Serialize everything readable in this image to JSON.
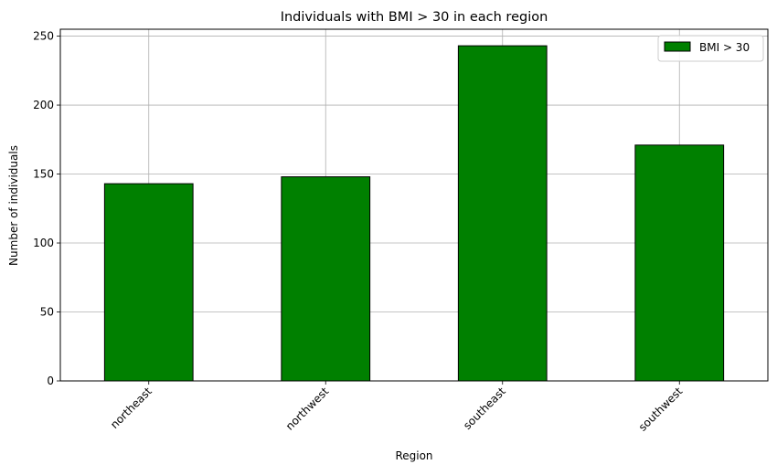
{
  "chart_data": {
    "type": "bar",
    "title": "Individuals with BMI > 30 in each region",
    "xlabel": "Region",
    "ylabel": "Number of individuals",
    "categories": [
      "northeast",
      "northwest",
      "southeast",
      "southwest"
    ],
    "series": [
      {
        "name": "BMI > 30",
        "values": [
          143,
          148,
          243,
          171
        ],
        "color": "#008000"
      }
    ],
    "ylim": [
      0,
      255
    ],
    "yticks": [
      0,
      50,
      100,
      150,
      200,
      250
    ],
    "grid": true,
    "legend_position": "top-right"
  }
}
